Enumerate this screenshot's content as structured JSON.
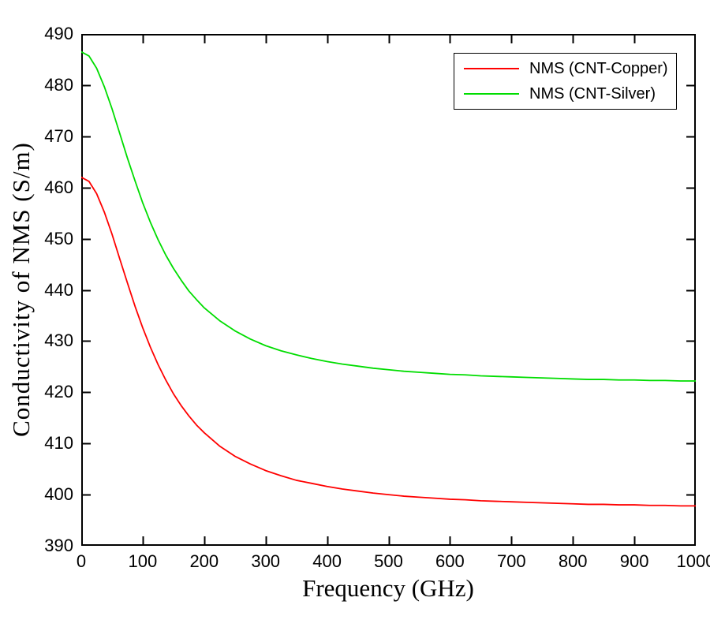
{
  "figure": {
    "background": "#ffffff",
    "axis_color": "#000000"
  },
  "chart_data": {
    "type": "line",
    "title": "",
    "xlabel": "Frequency (GHz)",
    "ylabel": "Conductivity of NMS (S/m)",
    "xlim": [
      0,
      1000
    ],
    "ylim": [
      390,
      490
    ],
    "xticks": [
      0,
      100,
      200,
      300,
      400,
      500,
      600,
      700,
      800,
      900,
      1000
    ],
    "yticks": [
      390,
      400,
      410,
      420,
      430,
      440,
      450,
      460,
      470,
      480,
      490
    ],
    "grid": false,
    "legend_position": "top-right",
    "x": [
      0,
      12.5,
      25,
      37.5,
      50,
      62.5,
      75,
      87.5,
      100,
      112.5,
      125,
      137.5,
      150,
      162.5,
      175,
      187.5,
      200,
      225,
      250,
      275,
      300,
      325,
      350,
      375,
      400,
      425,
      450,
      475,
      500,
      525,
      550,
      575,
      600,
      625,
      650,
      675,
      700,
      725,
      750,
      775,
      800,
      825,
      850,
      875,
      900,
      925,
      950,
      975,
      1000
    ],
    "series": [
      {
        "name": "NMS (CNT-Copper)",
        "color": "#ff0000",
        "values": [
          462.0,
          461.2,
          458.8,
          455.2,
          450.9,
          446.1,
          441.4,
          436.8,
          432.6,
          428.8,
          425.4,
          422.4,
          419.7,
          417.4,
          415.4,
          413.6,
          412.1,
          409.5,
          407.5,
          406.0,
          404.7,
          403.7,
          402.8,
          402.2,
          401.6,
          401.1,
          400.7,
          400.3,
          400.0,
          399.7,
          399.5,
          399.3,
          399.1,
          399.0,
          398.8,
          398.7,
          398.6,
          398.5,
          398.4,
          398.3,
          398.2,
          398.1,
          398.1,
          398.0,
          398.0,
          397.9,
          397.9,
          397.8,
          397.8
        ]
      },
      {
        "name": "NMS (CNT-Silver)",
        "color": "#00dd00",
        "values": [
          486.5,
          485.7,
          483.3,
          479.7,
          475.4,
          470.6,
          465.8,
          461.3,
          457.0,
          453.2,
          449.8,
          446.8,
          444.2,
          441.9,
          439.8,
          438.1,
          436.5,
          434.0,
          432.0,
          430.4,
          429.1,
          428.1,
          427.3,
          426.6,
          426.0,
          425.5,
          425.1,
          424.7,
          424.4,
          424.1,
          423.9,
          423.7,
          423.5,
          423.4,
          423.2,
          423.1,
          423.0,
          422.9,
          422.8,
          422.7,
          422.6,
          422.5,
          422.5,
          422.4,
          422.4,
          422.3,
          422.3,
          422.2,
          422.2
        ]
      }
    ]
  }
}
